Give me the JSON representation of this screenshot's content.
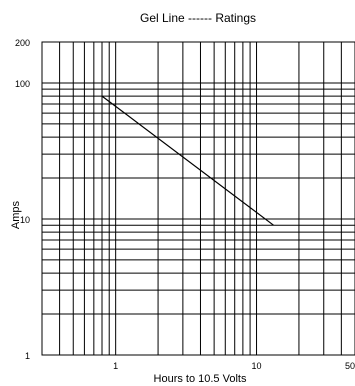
{
  "chart_data": {
    "type": "line",
    "title": "Gel Line ------ Ratings",
    "xlabel": "Hours to 10.5 Volts",
    "ylabel": "Amps",
    "x_scale": "log",
    "y_scale": "log",
    "xlim": [
      0.3,
      50
    ],
    "ylim": [
      1,
      200
    ],
    "x_tick_labels": [
      {
        "value": 1,
        "label": "1"
      },
      {
        "value": 10,
        "label": "10"
      },
      {
        "value": 50,
        "label": "50"
      }
    ],
    "y_tick_labels": [
      {
        "value": 1,
        "label": "1"
      },
      {
        "value": 10,
        "label": "10"
      },
      {
        "value": 100,
        "label": "100"
      },
      {
        "value": 200,
        "label": "200"
      }
    ],
    "grid": true,
    "series": [
      {
        "color": "#000000",
        "points": [
          {
            "x": 0.8,
            "y": 80
          },
          {
            "x": 13.2,
            "y": 9
          }
        ]
      }
    ]
  }
}
